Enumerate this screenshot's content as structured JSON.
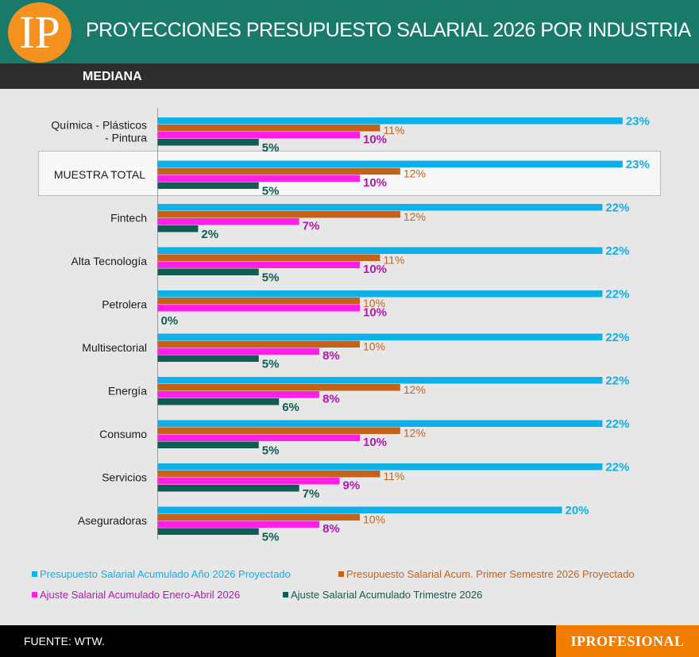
{
  "header": {
    "logo_text": "IP",
    "title": "PROYECCIONES PRESUPUESTO SALARIAL 2026 POR INDUSTRIA",
    "subtitle": "MEDIANA"
  },
  "footer": {
    "source": "FUENTE: WTW.",
    "brand": "IPROFESIONAL"
  },
  "colors": {
    "header_bg": "#1a7a6a",
    "subbar_bg": "#2d2d2d",
    "logo_bg": "#f5921f",
    "brand_bg": "#f07d00"
  },
  "chart_data": {
    "type": "bar",
    "orientation": "horizontal",
    "title": "PROYECCIONES PRESUPUESTO SALARIAL 2026 POR INDUSTRIA",
    "subtitle": "MEDIANA",
    "categories": [
      [
        "Química - Plásticos",
        "- Pintura"
      ],
      [
        "MUESTRA TOTAL"
      ],
      [
        "Fintech"
      ],
      [
        "Alta Tecnología"
      ],
      [
        "Petrolera"
      ],
      [
        "Multisectorial"
      ],
      [
        "Energía"
      ],
      [
        "Consumo"
      ],
      [
        "Servicios"
      ],
      [
        "Aseguradoras"
      ]
    ],
    "highlighted_category": "MUESTRA TOTAL",
    "series": [
      {
        "name": "Presupuesto Salarial Acumulado Año 2026 Proyectado",
        "color": "#0db0e8",
        "values": [
          23,
          23,
          22,
          22,
          22,
          22,
          22,
          22,
          22,
          20
        ]
      },
      {
        "name": "Presupuesto Salarial Acum. Primer Semestre 2026 Proyectado",
        "color": "#c4621a",
        "values": [
          11,
          12,
          12,
          11,
          10,
          10,
          12,
          12,
          11,
          10
        ]
      },
      {
        "name": "Ajuste Salarial Acumulado Enero-Abril 2026",
        "color": "#ff1fe6",
        "values": [
          10,
          10,
          7,
          10,
          10,
          8,
          8,
          10,
          9,
          8
        ]
      },
      {
        "name": "Ajuste Salarial Acumulado Trimestre 2026",
        "color": "#0f5c52",
        "values": [
          5,
          5,
          2,
          5,
          0,
          5,
          6,
          5,
          7,
          5
        ]
      }
    ],
    "label_colors": [
      "#0db0e8",
      "#c4621a",
      "#b018b0",
      "#0f5c52"
    ],
    "value_suffix": "%",
    "legend_position": "bottom",
    "grid": false
  }
}
